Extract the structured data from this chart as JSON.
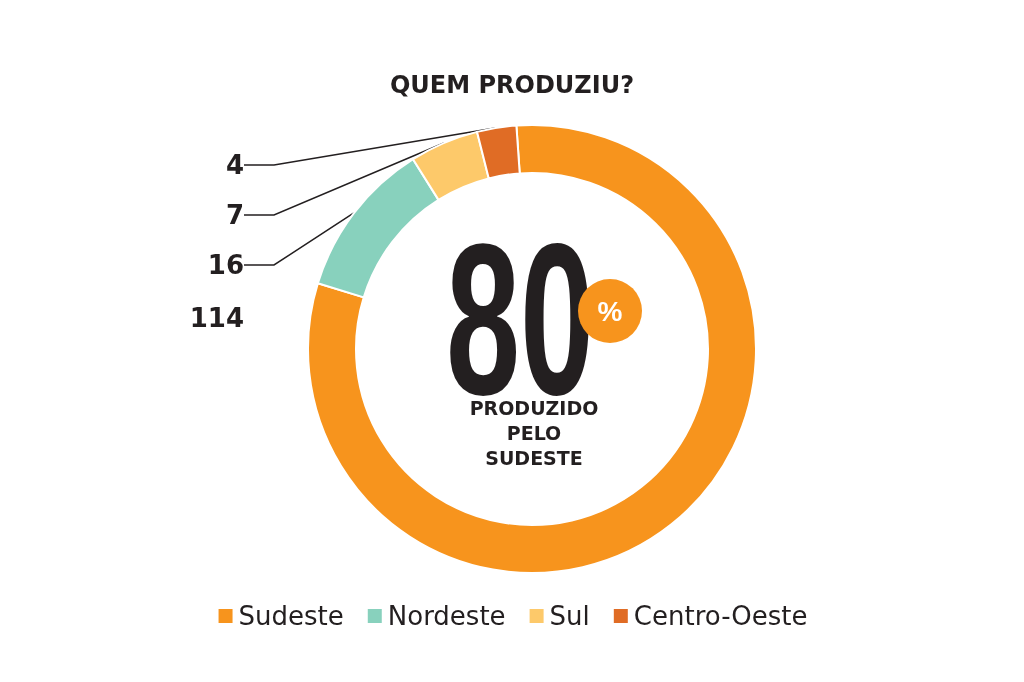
{
  "chart_data": {
    "type": "donut",
    "title": "QUEM PRODUZIU?",
    "categories": [
      "Sudeste",
      "Nordeste",
      "Sul",
      "Centro-Oeste"
    ],
    "values": [
      114,
      16,
      7,
      4
    ],
    "colors": [
      "#f7941d",
      "#88d1bd",
      "#fdc96a",
      "#e06c25"
    ],
    "data_labels": true,
    "legend": "bottom",
    "annotations": [
      "80",
      "%",
      "PRODUZIDO\nPELO\nSUDESTE"
    ]
  }
}
